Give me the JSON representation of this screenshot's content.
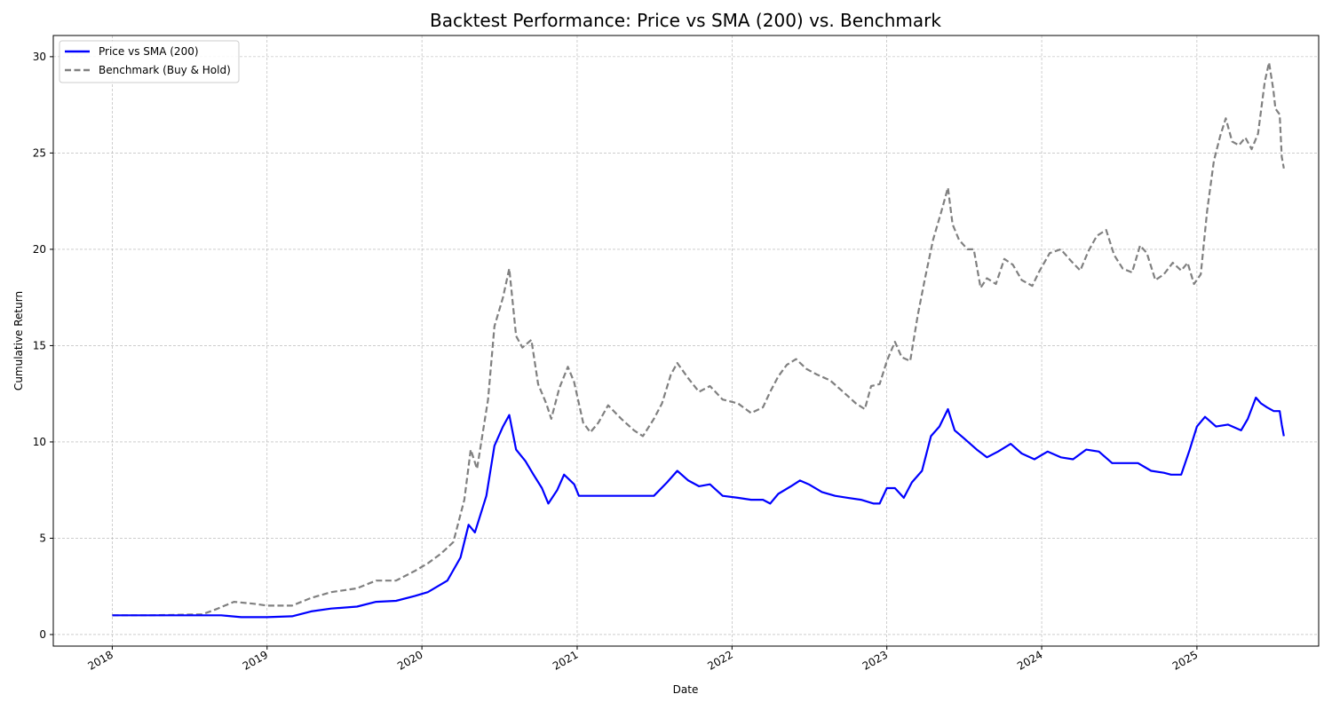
{
  "chart_data": {
    "type": "line",
    "title": "Backtest Performance: Price vs SMA (200) vs. Benchmark",
    "xlabel": "Date",
    "ylabel": "Cumulative Return",
    "x_ticks": [
      "2018",
      "2019",
      "2020",
      "2021",
      "2022",
      "2023",
      "2024",
      "2025"
    ],
    "y_ticks": [
      0,
      5,
      10,
      15,
      20,
      25,
      30
    ],
    "xlim": [
      "2017-08-15",
      "2025-10-15"
    ],
    "ylim": [
      -0.6,
      31.1
    ],
    "grid": true,
    "legend_position": "top-left",
    "series": [
      {
        "name": "Price vs SMA (200)",
        "color": "#0000ff",
        "style": "solid",
        "points": [
          [
            "2018-01-01",
            1.0
          ],
          [
            "2018-04-01",
            1.0
          ],
          [
            "2018-07-01",
            1.0
          ],
          [
            "2018-09-15",
            1.0
          ],
          [
            "2018-11-01",
            0.9
          ],
          [
            "2019-01-01",
            0.9
          ],
          [
            "2019-03-01",
            0.95
          ],
          [
            "2019-04-15",
            1.2
          ],
          [
            "2019-06-01",
            1.35
          ],
          [
            "2019-08-01",
            1.45
          ],
          [
            "2019-09-15",
            1.7
          ],
          [
            "2019-11-01",
            1.75
          ],
          [
            "2019-12-15",
            2.0
          ],
          [
            "2020-01-15",
            2.2
          ],
          [
            "2020-03-01",
            2.8
          ],
          [
            "2020-04-01",
            4.0
          ],
          [
            "2020-04-20",
            5.7
          ],
          [
            "2020-05-05",
            5.3
          ],
          [
            "2020-06-01",
            7.2
          ],
          [
            "2020-06-20",
            9.8
          ],
          [
            "2020-07-10",
            10.8
          ],
          [
            "2020-07-25",
            11.4
          ],
          [
            "2020-08-10",
            9.6
          ],
          [
            "2020-09-01",
            9.0
          ],
          [
            "2020-09-20",
            8.3
          ],
          [
            "2020-10-10",
            7.6
          ],
          [
            "2020-10-25",
            6.8
          ],
          [
            "2020-11-15",
            7.5
          ],
          [
            "2020-12-01",
            8.3
          ],
          [
            "2020-12-25",
            7.8
          ],
          [
            "2021-01-05",
            7.2
          ],
          [
            "2021-03-01",
            7.2
          ],
          [
            "2021-06-01",
            7.2
          ],
          [
            "2021-07-01",
            7.2
          ],
          [
            "2021-08-01",
            7.9
          ],
          [
            "2021-08-25",
            8.5
          ],
          [
            "2021-09-20",
            8.0
          ],
          [
            "2021-10-15",
            7.7
          ],
          [
            "2021-11-10",
            7.8
          ],
          [
            "2021-12-10",
            7.2
          ],
          [
            "2022-01-15",
            7.1
          ],
          [
            "2022-02-15",
            7.0
          ],
          [
            "2022-03-15",
            7.0
          ],
          [
            "2022-04-01",
            6.8
          ],
          [
            "2022-04-20",
            7.3
          ],
          [
            "2022-05-20",
            7.7
          ],
          [
            "2022-06-10",
            8.0
          ],
          [
            "2022-07-01",
            7.8
          ],
          [
            "2022-08-01",
            7.4
          ],
          [
            "2022-09-01",
            7.2
          ],
          [
            "2022-10-01",
            7.1
          ],
          [
            "2022-11-01",
            7.0
          ],
          [
            "2022-12-01",
            6.8
          ],
          [
            "2022-12-15",
            6.8
          ],
          [
            "2023-01-01",
            7.6
          ],
          [
            "2023-01-20",
            7.6
          ],
          [
            "2023-02-10",
            7.1
          ],
          [
            "2023-03-01",
            7.9
          ],
          [
            "2023-03-25",
            8.5
          ],
          [
            "2023-04-15",
            10.3
          ],
          [
            "2023-05-05",
            10.8
          ],
          [
            "2023-05-25",
            11.7
          ],
          [
            "2023-06-10",
            10.6
          ],
          [
            "2023-07-01",
            10.2
          ],
          [
            "2023-08-01",
            9.6
          ],
          [
            "2023-08-25",
            9.2
          ],
          [
            "2023-09-20",
            9.5
          ],
          [
            "2023-10-20",
            9.9
          ],
          [
            "2023-11-15",
            9.4
          ],
          [
            "2023-12-15",
            9.1
          ],
          [
            "2024-01-15",
            9.5
          ],
          [
            "2024-02-15",
            9.2
          ],
          [
            "2024-03-15",
            9.1
          ],
          [
            "2024-04-15",
            9.6
          ],
          [
            "2024-05-15",
            9.5
          ],
          [
            "2024-06-15",
            8.9
          ],
          [
            "2024-07-15",
            8.9
          ],
          [
            "2024-08-15",
            8.9
          ],
          [
            "2024-09-15",
            8.5
          ],
          [
            "2024-10-15",
            8.4
          ],
          [
            "2024-11-01",
            8.3
          ],
          [
            "2024-11-25",
            8.3
          ],
          [
            "2024-12-15",
            9.6
          ],
          [
            "2025-01-01",
            10.8
          ],
          [
            "2025-01-20",
            11.3
          ],
          [
            "2025-02-15",
            10.8
          ],
          [
            "2025-03-15",
            10.9
          ],
          [
            "2025-04-15",
            10.6
          ],
          [
            "2025-05-01",
            11.2
          ],
          [
            "2025-05-20",
            12.3
          ],
          [
            "2025-06-01",
            12.0
          ],
          [
            "2025-06-15",
            11.8
          ],
          [
            "2025-07-01",
            11.6
          ],
          [
            "2025-07-15",
            11.6
          ],
          [
            "2025-07-20",
            10.9
          ],
          [
            "2025-07-25",
            10.3
          ]
        ]
      },
      {
        "name": "Benchmark (Buy & Hold)",
        "color": "#808080",
        "style": "dashed",
        "points": [
          [
            "2018-01-01",
            1.0
          ],
          [
            "2018-04-01",
            1.0
          ],
          [
            "2018-08-01",
            1.05
          ],
          [
            "2018-09-01",
            1.3
          ],
          [
            "2018-10-15",
            1.7
          ],
          [
            "2018-12-01",
            1.6
          ],
          [
            "2019-01-01",
            1.5
          ],
          [
            "2019-03-01",
            1.5
          ],
          [
            "2019-04-15",
            1.9
          ],
          [
            "2019-06-01",
            2.2
          ],
          [
            "2019-08-01",
            2.4
          ],
          [
            "2019-09-15",
            2.8
          ],
          [
            "2019-11-01",
            2.8
          ],
          [
            "2019-12-15",
            3.3
          ],
          [
            "2020-01-15",
            3.7
          ],
          [
            "2020-02-15",
            4.2
          ],
          [
            "2020-03-15",
            4.8
          ],
          [
            "2020-04-10",
            7.0
          ],
          [
            "2020-04-25",
            9.6
          ],
          [
            "2020-05-10",
            8.6
          ],
          [
            "2020-06-05",
            12.2
          ],
          [
            "2020-06-20",
            16.0
          ],
          [
            "2020-07-10",
            17.5
          ],
          [
            "2020-07-25",
            19.0
          ],
          [
            "2020-08-10",
            15.5
          ],
          [
            "2020-08-25",
            14.9
          ],
          [
            "2020-09-15",
            15.3
          ],
          [
            "2020-10-01",
            13.0
          ],
          [
            "2020-10-20",
            12.0
          ],
          [
            "2020-11-01",
            11.2
          ],
          [
            "2020-11-20",
            12.8
          ],
          [
            "2020-12-10",
            13.9
          ],
          [
            "2020-12-25",
            13.1
          ],
          [
            "2021-01-15",
            11.0
          ],
          [
            "2021-02-01",
            10.5
          ],
          [
            "2021-02-20",
            11.0
          ],
          [
            "2021-03-15",
            11.9
          ],
          [
            "2021-04-15",
            11.2
          ],
          [
            "2021-05-15",
            10.6
          ],
          [
            "2021-06-05",
            10.3
          ],
          [
            "2021-07-01",
            11.2
          ],
          [
            "2021-07-20",
            12.0
          ],
          [
            "2021-08-10",
            13.5
          ],
          [
            "2021-08-25",
            14.1
          ],
          [
            "2021-09-20",
            13.3
          ],
          [
            "2021-10-15",
            12.6
          ],
          [
            "2021-11-10",
            12.9
          ],
          [
            "2021-12-10",
            12.2
          ],
          [
            "2022-01-15",
            12.0
          ],
          [
            "2022-02-15",
            11.5
          ],
          [
            "2022-03-15",
            11.8
          ],
          [
            "2022-04-01",
            12.6
          ],
          [
            "2022-04-20",
            13.4
          ],
          [
            "2022-05-10",
            14.0
          ],
          [
            "2022-06-01",
            14.3
          ],
          [
            "2022-06-25",
            13.8
          ],
          [
            "2022-07-20",
            13.5
          ],
          [
            "2022-08-20",
            13.2
          ],
          [
            "2022-09-20",
            12.6
          ],
          [
            "2022-10-20",
            12.0
          ],
          [
            "2022-11-10",
            11.7
          ],
          [
            "2022-11-25",
            12.9
          ],
          [
            "2022-12-15",
            13.0
          ],
          [
            "2023-01-01",
            14.2
          ],
          [
            "2023-01-20",
            15.2
          ],
          [
            "2023-02-05",
            14.4
          ],
          [
            "2023-02-25",
            14.2
          ],
          [
            "2023-03-15",
            16.6
          ],
          [
            "2023-04-01",
            18.5
          ],
          [
            "2023-04-20",
            20.5
          ],
          [
            "2023-05-10",
            22.0
          ],
          [
            "2023-05-25",
            23.2
          ],
          [
            "2023-06-05",
            21.3
          ],
          [
            "2023-06-20",
            20.5
          ],
          [
            "2023-07-10",
            20.0
          ],
          [
            "2023-07-25",
            20.0
          ],
          [
            "2023-08-10",
            18.0
          ],
          [
            "2023-08-25",
            18.5
          ],
          [
            "2023-09-15",
            18.2
          ],
          [
            "2023-10-05",
            19.5
          ],
          [
            "2023-10-25",
            19.2
          ],
          [
            "2023-11-15",
            18.4
          ],
          [
            "2023-12-10",
            18.1
          ],
          [
            "2023-12-25",
            18.8
          ],
          [
            "2024-01-20",
            19.8
          ],
          [
            "2024-02-15",
            20.0
          ],
          [
            "2024-03-10",
            19.4
          ],
          [
            "2024-04-01",
            18.9
          ],
          [
            "2024-04-20",
            19.9
          ],
          [
            "2024-05-10",
            20.7
          ],
          [
            "2024-06-01",
            21.0
          ],
          [
            "2024-06-20",
            19.7
          ],
          [
            "2024-07-10",
            19.0
          ],
          [
            "2024-08-01",
            18.8
          ],
          [
            "2024-08-20",
            20.2
          ],
          [
            "2024-09-05",
            19.8
          ],
          [
            "2024-09-25",
            18.4
          ],
          [
            "2024-10-15",
            18.7
          ],
          [
            "2024-11-05",
            19.3
          ],
          [
            "2024-11-25",
            18.9
          ],
          [
            "2024-12-10",
            19.3
          ],
          [
            "2024-12-25",
            18.2
          ],
          [
            "2025-01-10",
            18.7
          ],
          [
            "2025-01-25",
            22.0
          ],
          [
            "2025-02-10",
            24.6
          ],
          [
            "2025-02-25",
            25.9
          ],
          [
            "2025-03-10",
            26.8
          ],
          [
            "2025-03-25",
            25.6
          ],
          [
            "2025-04-10",
            25.4
          ],
          [
            "2025-04-25",
            25.8
          ],
          [
            "2025-05-10",
            25.2
          ],
          [
            "2025-05-25",
            26.0
          ],
          [
            "2025-06-10",
            28.7
          ],
          [
            "2025-06-20",
            29.7
          ],
          [
            "2025-06-30",
            28.3
          ],
          [
            "2025-07-05",
            27.3
          ],
          [
            "2025-07-15",
            27.0
          ],
          [
            "2025-07-20",
            24.8
          ],
          [
            "2025-07-25",
            24.2
          ]
        ]
      }
    ]
  }
}
